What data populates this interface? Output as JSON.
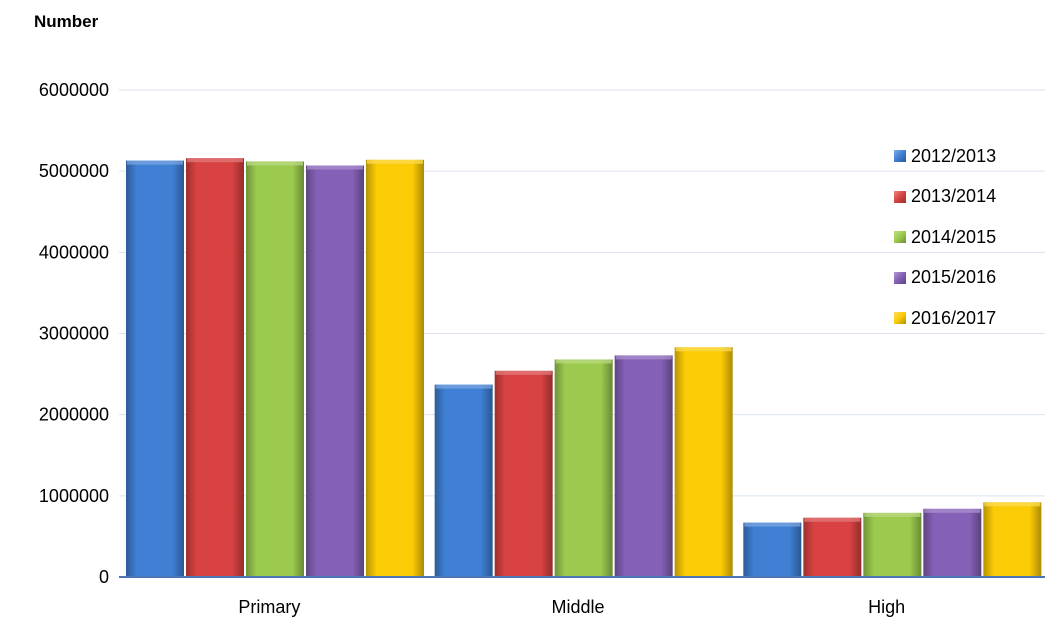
{
  "chart_data": {
    "type": "bar",
    "ylabel": "Number",
    "categories": [
      "Primary",
      "Middle",
      "High"
    ],
    "ylim": [
      0,
      6000000
    ],
    "yticks": [
      0,
      1000000,
      2000000,
      3000000,
      4000000,
      5000000,
      6000000
    ],
    "grid": true,
    "legend_position": "right",
    "series": [
      {
        "name": "2012/2013",
        "color": "#3f7fd4",
        "values": [
          5130000,
          2370000,
          670000
        ]
      },
      {
        "name": "2013/2014",
        "color": "#d84242",
        "values": [
          5160000,
          2540000,
          730000
        ]
      },
      {
        "name": "2014/2015",
        "color": "#9bca4e",
        "values": [
          5120000,
          2680000,
          790000
        ]
      },
      {
        "name": "2015/2016",
        "color": "#8560b7",
        "values": [
          5070000,
          2730000,
          840000
        ]
      },
      {
        "name": "2016/2017",
        "color": "#fbcb05",
        "values": [
          5140000,
          2830000,
          920000
        ]
      }
    ]
  }
}
